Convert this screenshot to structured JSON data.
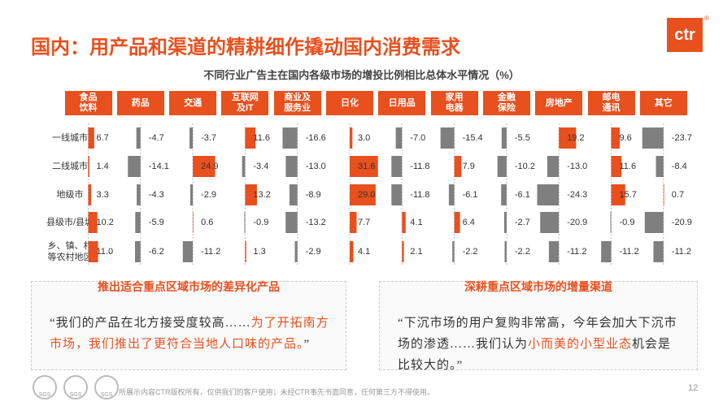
{
  "header": {
    "title": "国内：用产品和渠道的精耕细作撬动国内消费需求",
    "logo": "ctr",
    "logo_mark": "®"
  },
  "chart_data": {
    "type": "bar-matrix",
    "title": "不同行业广告主在国内各级市场的增投比例相比总体水平情况（%）",
    "categories": [
      "一线城市",
      "二线城市",
      "地级市",
      "县级市/县城",
      "乡、镇、村\n等农村地区"
    ],
    "positive_color": "#e8501e",
    "negative_color": "#7f7f7f",
    "series": [
      {
        "name": "食品\n饮料",
        "values": [
          6.7,
          1.4,
          3.3,
          10.2,
          11.0
        ],
        "value_labels": [
          "6.7",
          "1.4",
          "3.3",
          "10.2",
          "11.0"
        ]
      },
      {
        "name": "药品",
        "values": [
          -4.7,
          -14.1,
          -4.3,
          -5.9,
          -6.2
        ],
        "value_labels": [
          "-4.7",
          "-14.1",
          "-4.3",
          "-5.9",
          "-6.2"
        ]
      },
      {
        "name": "交通",
        "values": [
          -3.7,
          24.9,
          -2.9,
          0.6,
          -11.2
        ],
        "value_labels": [
          "-3.7",
          "24.9",
          "-2.9",
          "0.6",
          "-11.2"
        ]
      },
      {
        "name": "互联网\n及IT",
        "values": [
          11.6,
          -3.4,
          13.2,
          -0.9,
          1.3
        ],
        "value_labels": [
          "11.6",
          "-3.4",
          "13.2",
          "-0.9",
          "1.3"
        ]
      },
      {
        "name": "商业及\n服务业",
        "values": [
          -16.6,
          -13.0,
          -8.9,
          -13.2,
          -2.9
        ],
        "value_labels": [
          "-16.6",
          "-13.0",
          "-8.9",
          "-13.2",
          "-2.9"
        ]
      },
      {
        "name": "日化",
        "values": [
          3.0,
          31.6,
          29.0,
          7.7,
          4.1
        ],
        "value_labels": [
          "3.0",
          "31.6",
          "29.0",
          "7.7",
          "4.1"
        ]
      },
      {
        "name": "日用品",
        "values": [
          -7.0,
          -11.8,
          -11.8,
          4.1,
          2.1
        ],
        "value_labels": [
          "-7.0",
          "-11.8",
          "-11.8",
          "4.1",
          "2.1"
        ]
      },
      {
        "name": "家用\n电器",
        "values": [
          -15.4,
          7.9,
          -6.1,
          6.4,
          -2.2
        ],
        "value_labels": [
          "-15.4",
          "7.9",
          "-6.1",
          "6.4",
          "-2.2"
        ]
      },
      {
        "name": "金融\n保险",
        "values": [
          -5.5,
          -10.2,
          -6.1,
          -2.7,
          -2.2
        ],
        "value_labels": [
          "-5.5",
          "-10.2",
          "-6.1",
          "-2.7",
          "-2.2"
        ]
      },
      {
        "name": "房地产",
        "values": [
          19.2,
          -13.0,
          -24.3,
          -20.9,
          -11.2
        ],
        "value_labels": [
          "19.2",
          "-13.0",
          "-24.3",
          "-20.9",
          "-11.2"
        ]
      },
      {
        "name": "邮电\n通讯",
        "values": [
          9.6,
          11.6,
          15.7,
          -0.9,
          -11.2
        ],
        "value_labels": [
          "9.6",
          "11.6",
          "15.7",
          "-0.9",
          "-11.2"
        ]
      },
      {
        "name": "其它",
        "values": [
          -23.7,
          -8.4,
          0.7,
          -20.9,
          -11.2
        ],
        "value_labels": [
          "-23.7",
          "-8.4",
          "0.7",
          "-20.9",
          "-11.2"
        ]
      }
    ]
  },
  "callouts": [
    {
      "title": "推出适合重点区域市场的差异化产品",
      "quote": [
        "“我们的产品在北方接受度较高……",
        "为了开拓南方市场，我们推出了更符合当地人口味的产品。",
        "”"
      ]
    },
    {
      "title": "深耕重点区域市场的增量渠道",
      "quote": [
        "“下沉市场的用户复购非常高，今年会加大下沉市场的渗透……我们认为",
        "小而美的小型业态",
        "机会是比较大的。”"
      ]
    }
  ],
  "footer": {
    "note": "所展示内容CTR版权所有，仅供我们的客户使用；未经CTR事先书面同意，任何第三方不得使用。",
    "page": "12",
    "badges": [
      "SGS",
      "SGS",
      "SGS"
    ]
  }
}
